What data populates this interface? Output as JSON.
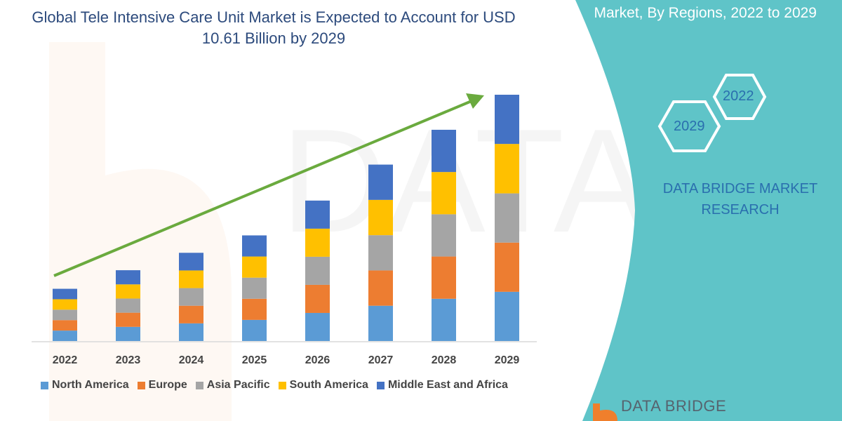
{
  "title": "Global Tele Intensive Care Unit Market is Expected to Account for USD 10.61 Billion by 2029",
  "side_title": "Market, By Regions, 2022 to 2029",
  "hexagons": [
    "2022",
    "2029"
  ],
  "brand_text": "DATA BRIDGE MARKET RESEARCH",
  "logo_text": "DATA BRIDGE",
  "colors": {
    "panel": "#5fc4c8",
    "title": "#2c4a7c",
    "arrow": "#6aaa3e"
  },
  "chart_data": {
    "type": "bar",
    "stacked": true,
    "categories": [
      "2022",
      "2023",
      "2024",
      "2025",
      "2026",
      "2027",
      "2028",
      "2029"
    ],
    "series": [
      {
        "name": "North America",
        "color": "#5b9bd5",
        "values": [
          0.45,
          0.61,
          0.76,
          0.91,
          1.21,
          1.52,
          1.82,
          2.12
        ]
      },
      {
        "name": "Europe",
        "color": "#ed7d31",
        "values": [
          0.45,
          0.61,
          0.76,
          0.91,
          1.21,
          1.52,
          1.82,
          2.12
        ]
      },
      {
        "name": "Asia Pacific",
        "color": "#a5a5a5",
        "values": [
          0.45,
          0.61,
          0.76,
          0.91,
          1.21,
          1.52,
          1.82,
          2.12
        ]
      },
      {
        "name": "South America",
        "color": "#ffc000",
        "values": [
          0.45,
          0.61,
          0.76,
          0.91,
          1.21,
          1.52,
          1.82,
          2.13
        ]
      },
      {
        "name": "Middle East and Africa",
        "color": "#4472c4",
        "values": [
          0.45,
          0.61,
          0.76,
          0.91,
          1.21,
          1.52,
          1.82,
          2.12
        ]
      }
    ],
    "ylim": [
      0,
      10.61
    ],
    "grid": false,
    "legend": "bottom",
    "trend_arrow": true
  }
}
